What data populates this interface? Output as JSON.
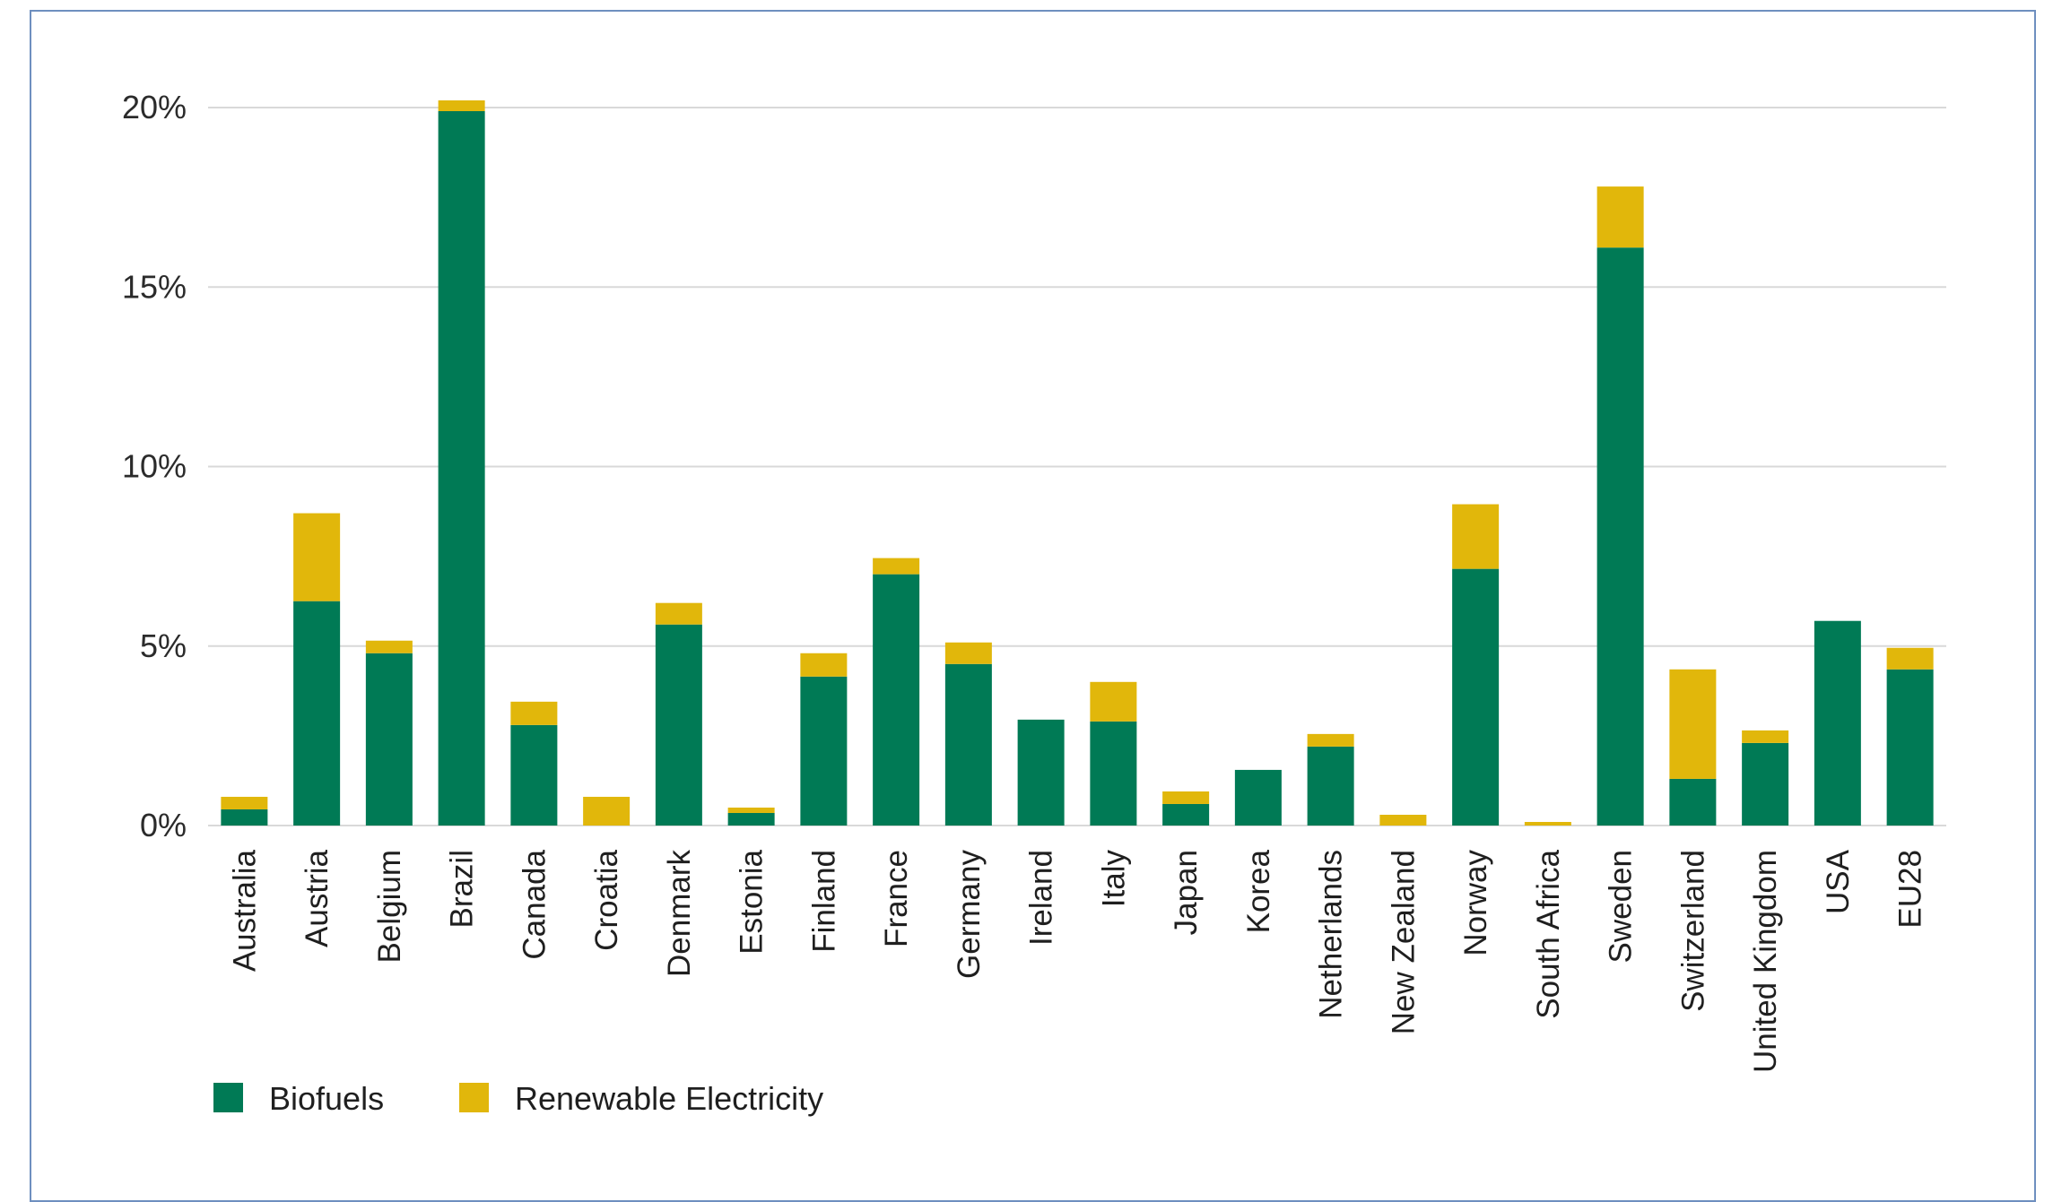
{
  "chart_data": {
    "type": "bar",
    "stacked": true,
    "categories": [
      "Australia",
      "Austria",
      "Belgium",
      "Brazil",
      "Canada",
      "Croatia",
      "Denmark",
      "Estonia",
      "Finland",
      "France",
      "Germany",
      "Ireland",
      "Italy",
      "Japan",
      "Korea",
      "Netherlands",
      "New Zealand",
      "Norway",
      "South Africa",
      "Sweden",
      "Switzerland",
      "United Kingdom",
      "USA",
      "EU28"
    ],
    "series": [
      {
        "name": "Biofuels",
        "color": "#007a55",
        "values": [
          0.45,
          6.25,
          4.8,
          19.9,
          2.8,
          0,
          5.6,
          0.35,
          4.15,
          7.0,
          4.5,
          2.95,
          2.9,
          0.6,
          1.55,
          2.2,
          0,
          7.15,
          0,
          16.1,
          1.3,
          2.3,
          5.7,
          4.35
        ]
      },
      {
        "name": "Renewable Electricity",
        "color": "#e1b70b",
        "values": [
          0.35,
          2.45,
          0.35,
          0.3,
          0.65,
          0.8,
          0.6,
          0.15,
          0.65,
          0.45,
          0.6,
          0,
          1.1,
          0.35,
          0,
          0.35,
          0.3,
          1.8,
          0.1,
          1.7,
          3.05,
          0.35,
          0,
          0.6
        ]
      }
    ],
    "y_ticks": [
      "0%",
      "5%",
      "10%",
      "15%",
      "20%"
    ],
    "ylim": [
      0,
      20
    ],
    "grid": true,
    "legend_position": "bottom-left",
    "gridline_color": "#d9d9d9"
  }
}
